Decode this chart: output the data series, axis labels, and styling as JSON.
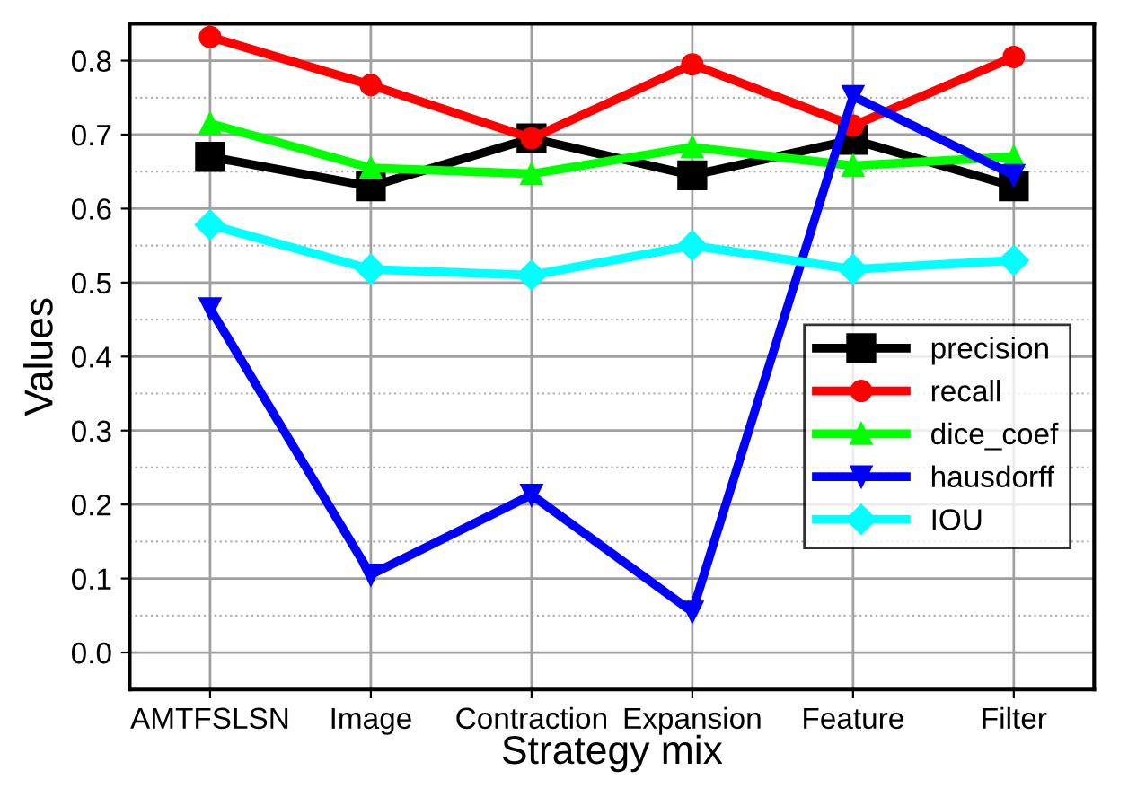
{
  "chart_data": {
    "type": "line",
    "xlabel": "Strategy mix",
    "ylabel": "Values",
    "categories": [
      "AMTFSLSN",
      "Image",
      "Contraction",
      "Expansion",
      "Feature",
      "Filter"
    ],
    "series": [
      {
        "name": "precision",
        "color": "#000000",
        "marker": "square",
        "values": [
          0.67,
          0.63,
          0.695,
          0.645,
          0.693,
          0.63
        ]
      },
      {
        "name": "recall",
        "color": "#ff0000",
        "marker": "circle",
        "values": [
          0.832,
          0.767,
          0.695,
          0.795,
          0.712,
          0.805
        ]
      },
      {
        "name": "dice_coef",
        "color": "#00ff00",
        "marker": "triangle",
        "values": [
          0.715,
          0.655,
          0.647,
          0.683,
          0.658,
          0.67
        ]
      },
      {
        "name": "hausdorff",
        "color": "#0000ff",
        "marker": "triangle_down",
        "values": [
          0.465,
          0.105,
          0.213,
          0.055,
          0.752,
          0.645
        ]
      },
      {
        "name": "IOU",
        "color": "#00ffff",
        "marker": "diamond",
        "values": [
          0.578,
          0.518,
          0.51,
          0.55,
          0.518,
          0.53
        ]
      }
    ],
    "ylim": [
      -0.05,
      0.85
    ],
    "yticks": [
      {
        "value": 0,
        "label": "0.0"
      },
      {
        "value": 0.1,
        "label": "0.1"
      },
      {
        "value": 0.2,
        "label": "0.2"
      },
      {
        "value": 0.3,
        "label": "0.3"
      },
      {
        "value": 0.4,
        "label": "0.4"
      },
      {
        "value": 0.5,
        "label": "0.5"
      },
      {
        "value": 0.6,
        "label": "0.6"
      },
      {
        "value": 0.7,
        "label": "0.7"
      },
      {
        "value": 0.8,
        "label": "0.8"
      }
    ],
    "grid": true,
    "legend": "right",
    "line_style": "solid"
  }
}
